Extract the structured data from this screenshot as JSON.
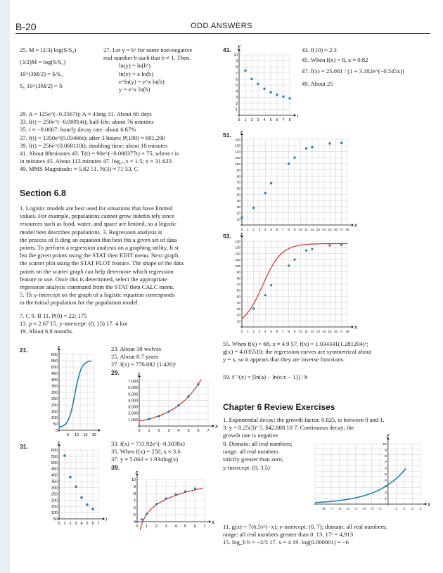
{
  "header": {
    "page": "B-20",
    "title": "ODD ANSWERS"
  },
  "col1": {
    "p25": [
      "25. M = (2/3) log(S/S₀)",
      "(3/2)M = log(S/S₀)",
      "10^(3M/2) = S/S₀",
      "S₀ 10^(3M/2) = S"
    ],
    "p27": [
      "27. Let y = bˣ for some non-negative",
      "real number b such that b ≠ 1. Then,",
      "ln(y) = ln(bˣ)",
      "ln(y) = x ln(b)",
      "e^ln(y) = e^x ln(b)",
      "y = e^x ln(b)"
    ],
    "lines_a": [
      "29. A = 125e^(−0.3567t); A ≈ 43mg      31. About 60 days",
      "33. f(t) = 250e^(−0.00914t); half-life: about 76 minutes",
      "35. r ≈ −0.0667; hourly decay rate: about 6.67%",
      "37. f(t) = 1350e^(0.03466t); after 3 hours: P(180) ≈ 691,200",
      "39. f(t) = 256e^(0.068110t); doubling time: about 10 minutes",
      "41. About 88minutes     43. T(t) = 90e^(−0.008377t) + 75, where t is",
      "in minutes   45. About 113 minutes   47. log₀.₅x = 1.5; x ≈ 31.623",
      "49. MMS Magnitude: ≈ 5.82        51. N(3) ≈ 71        53. C"
    ],
    "section": "Section 6.8",
    "para1": [
      "1. Logistic models are best used for situations that have limited",
      "values. For example, populations cannot grow indefin tely since",
      "resources such as food, water, and space are limited, so a logistic",
      "model best describes populations.      3. Regression analysis is",
      "the process of fi ding an equation that best fits a given set of data",
      "points. To perform a regression analysis on a graphing utility, fi st",
      "list the given points using the STAT then EDIT menu. Next graph",
      "the scatter plot using the STAT PLOT feature. The shape of the data",
      "points on the scatter graph can help determine which regression",
      "feature to use. Once this is determined, select the appropriate",
      "regression analysis command from the STAT then CALC menu.",
      "5. Th  y-intercept on the graph of a logistic equation corresponds",
      "to the initial population for the population model."
    ],
    "lines_b": [
      "7. C        9. B        11. P(0) = 22; 175",
      "13. p ≈ 2.67        15. y-intercept: (0, 15)        17. 4 koi",
      "19. About 6.8 months."
    ],
    "g21": {
      "label": "21.",
      "y": "y",
      "x": "x",
      "yticks": [
        "600",
        "550",
        "500",
        "450",
        "400",
        "350",
        "300",
        "250",
        "200",
        "150",
        "100",
        "50",
        "0"
      ],
      "xticks": [
        "5",
        "10",
        "15",
        "20"
      ]
    },
    "g31": {
      "label": "31.",
      "y": "y",
      "x": "x",
      "yticks": [
        "600",
        "550",
        "500",
        "450",
        "400",
        "350",
        "300",
        "250",
        "200",
        "150",
        "100",
        "50"
      ],
      "xticks": [
        "0",
        "1",
        "2",
        "3",
        "4",
        "5",
        "6",
        "7"
      ]
    },
    "mid": {
      "l23": "23. About 38 wolves",
      "l25": "25. About 8.7 years",
      "l27": "27. f(x) = 776.682 (1.426)ˣ",
      "l29": "29.",
      "l33": "33. f(x) = 731.92e^(−0.3038x)",
      "l35": "35. When f(x) = 250, x ≈ 3.6",
      "l37": "37. y = 5.063 + 1.934log(x)",
      "l39": "39."
    },
    "g29": {
      "y": "y",
      "x": "x",
      "yticks": [
        "7,000",
        "6,000",
        "5,000",
        "4,000",
        "3,000",
        "2,000",
        "1,000"
      ],
      "xticks": [
        "0",
        "1",
        "2",
        "3",
        "4",
        "5",
        "6",
        "7"
      ]
    },
    "g39": {
      "y": "y",
      "x": "x",
      "yticks": [
        "10",
        "9",
        "8",
        "7",
        "6",
        "5",
        "4"
      ],
      "xticks": [
        "0",
        "1",
        "2",
        "3",
        "4",
        "5",
        "6",
        "7"
      ]
    }
  },
  "col2": {
    "g41": {
      "label": "41.",
      "y": "y",
      "x": "x",
      "yticks": [
        "10",
        "9",
        "8",
        "7",
        "6",
        "5",
        "4",
        "3",
        "2",
        "1"
      ],
      "xticks": [
        "0",
        "1",
        "2",
        "3",
        "4",
        "5",
        "6",
        "7",
        "8"
      ]
    },
    "r43": "43. f(10) ≈ 2.3",
    "r45": "45. When f(x) = 8, x ≈ 0.82",
    "r47": "47. f(x) = 25,081 / (1 + 3.182e^(−0.545x))",
    "r49": "49. About 25",
    "g51": {
      "label": "51.",
      "y": "y",
      "x": "x",
      "yticks": [
        "140",
        "130",
        "120",
        "110",
        "100",
        "90",
        "80",
        "70",
        "60",
        "50",
        "40",
        "30",
        "20",
        "10"
      ],
      "xticks": [
        "0",
        "1",
        "2",
        "3",
        "4",
        "5",
        "6",
        "7",
        "8",
        "9",
        "10",
        "11",
        "12",
        "13",
        "14",
        "15",
        "16",
        "17",
        "18"
      ]
    },
    "g53": {
      "label": "53.",
      "y": "y",
      "x": "x",
      "yticks": [
        "140",
        "130",
        "120",
        "110",
        "100",
        "90",
        "80",
        "70",
        "60",
        "50",
        "40",
        "30",
        "20",
        "10"
      ],
      "xticks": [
        "0",
        "1",
        "2",
        "3",
        "4",
        "5",
        "6",
        "7",
        "8",
        "9",
        "10",
        "11",
        "12",
        "13",
        "14",
        "15",
        "16",
        "17",
        "18"
      ]
    },
    "l55": [
      "55. When f(x) = 68, x ≈ 4.9        57. f(x) = 1.034341(1.281204)ˣ;",
      "g(x) = 4.035510; the regression curves are symmetrical about",
      "y = x, so it appears that they are inverse functions."
    ],
    "l59": "59. f⁻¹(x) = [ln(a) − ln(c/x − 1)] / b",
    "review": "Chapter 6 Review Exercises",
    "rev1": [
      "1. Exponential decay; the growth factor, 0.825, is between 0 and 1.",
      "3. y = 0.25(3)ˣ        5. $42,888.18        7. Continuous decay; the",
      "growth rate is negative"
    ],
    "rev9": [
      "9. Domain: all real numbers;",
      "range: all real numbers",
      "strictly greater than zero;",
      "y-intercept: (0, 3.5)"
    ],
    "g9": {
      "y": "y",
      "x": "x",
      "yticks": [
        "10",
        "9",
        "8",
        "7",
        "6",
        "5",
        "4",
        "3",
        "2",
        "1"
      ],
      "xticks": [
        "−8",
        "−7",
        "−6",
        "−5",
        "−4",
        "−3",
        "−2",
        "−1",
        "1",
        "2",
        "3",
        "4"
      ]
    },
    "rev11": [
      "11. g(x) = 7(6.5)^(−x); y-intercept: (0, 7); domain: all real numbers;",
      "range: all real numbers greater than 0.        13. 17ˣ = 4,913",
      "15. log_b b = −2/5        17. x = 4        19. log(0.000001) = −6"
    ]
  }
}
